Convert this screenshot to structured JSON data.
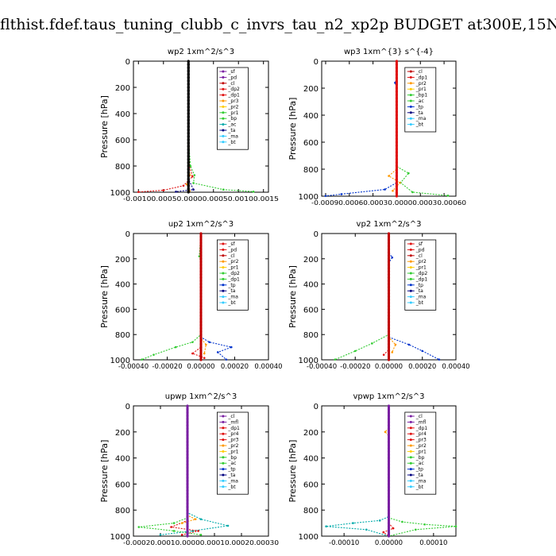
{
  "page_title": "flthist.fdef.taus_tuning_clubb_c_invrs_tau_n2_xp2p  BUDGET at300E,15N",
  "colors": {
    "red": "#e01010",
    "darkred": "#c00000",
    "purple": "#7a1fa2",
    "orange": "#ff9900",
    "yellow": "#ffcc00",
    "green": "#33cc33",
    "blue": "#0033cc",
    "cyan": "#33ccff",
    "teal": "#00aaaa",
    "navy": "#000080",
    "black": "#000000"
  },
  "chart_data": [
    {
      "type": "line",
      "title": "wp2   1xm^2/s^3",
      "ylabel": "Pressure [hPa]",
      "ylim": [
        1000,
        0
      ],
      "y_ticks": [
        "0",
        "200",
        "400",
        "600",
        "800",
        "1000"
      ],
      "xlim": [
        -0.0011,
        0.0016
      ],
      "x_ticks": [
        -0.001,
        -0.0005,
        0.0,
        0.0005,
        0.001,
        0.0015
      ],
      "x_tick_labels": [
        "-0.00100.00050.00000.00050.00100.0015"
      ],
      "legend": [
        "_sf",
        "_pd",
        "_cl",
        "_dp2",
        "_dp1",
        "_pr3",
        "_pr2",
        "_pr1",
        "_bp",
        "_ac",
        "_ta",
        "_ma",
        "_bt"
      ],
      "legend_colors": [
        "purple",
        "purple",
        "darkred",
        "red",
        "red",
        "orange",
        "yellow",
        "green",
        "green",
        "teal",
        "navy",
        "cyan",
        "cyan"
      ],
      "series": [
        {
          "color": "red",
          "pts": [
            [
              0,
              0
            ],
            [
              0,
              400
            ],
            [
              2e-05,
              800
            ],
            [
              8e-05,
              880
            ],
            [
              -0.0001,
              950
            ],
            [
              -0.0005,
              985
            ],
            [
              -0.001,
              998
            ]
          ]
        },
        {
          "color": "green",
          "pts": [
            [
              0,
              0
            ],
            [
              0,
              600
            ],
            [
              4e-05,
              800
            ],
            [
              0.00012,
              870
            ],
            [
              0.0001,
              930
            ],
            [
              0.0007,
              980
            ],
            [
              0.0013,
              996
            ]
          ]
        },
        {
          "color": "orange",
          "pts": [
            [
              0,
              0
            ],
            [
              0,
              800
            ],
            [
              3e-05,
              870
            ],
            [
              -3e-05,
              940
            ],
            [
              2e-05,
              990
            ]
          ]
        },
        {
          "color": "navy",
          "pts": [
            [
              0,
              0
            ],
            [
              0,
              900
            ],
            [
              0.0001,
              980
            ],
            [
              -0.00025,
              996
            ]
          ]
        },
        {
          "color": "black",
          "pts": [
            [
              0,
              0
            ],
            [
              0,
              1000
            ]
          ]
        }
      ]
    },
    {
      "type": "line",
      "title": "wp3   1xm^{3} s^{-4}",
      "ylabel": "Pressure [hPa]",
      "ylim": [
        1000,
        0
      ],
      "y_ticks": [
        "0",
        "200",
        "400",
        "600",
        "800",
        "1000"
      ],
      "xlim": [
        -0.00095,
        0.00075
      ],
      "x_ticks": [
        -0.0009,
        -0.0006,
        -0.0003,
        0.0,
        0.0003,
        0.0006
      ],
      "x_tick_labels": [
        "-0.00090.00060.00030.00000.00030.00060"
      ],
      "legend": [
        "_cl",
        "_dp1",
        "_pr2",
        "_pr1",
        "_bp1",
        "_ac",
        "_tp",
        "_ta",
        "_ma",
        "_bt"
      ],
      "legend_colors": [
        "darkred",
        "red",
        "orange",
        "yellow",
        "green",
        "green",
        "blue",
        "navy",
        "cyan",
        "cyan"
      ],
      "series": [
        {
          "color": "blue",
          "pts": [
            [
              0,
              0
            ],
            [
              0,
              130
            ],
            [
              -2e-05,
              160
            ],
            [
              0,
              200
            ],
            [
              0,
              900
            ],
            [
              -0.00015,
              950
            ],
            [
              -0.0007,
              985
            ],
            [
              -0.0009,
              998
            ]
          ]
        },
        {
          "color": "green",
          "pts": [
            [
              0,
              0
            ],
            [
              0,
              780
            ],
            [
              0.00015,
              830
            ],
            [
              5e-05,
              900
            ],
            [
              0.0002,
              970
            ],
            [
              0.00065,
              996
            ]
          ]
        },
        {
          "color": "orange",
          "pts": [
            [
              0,
              0
            ],
            [
              0,
              800
            ],
            [
              -0.0001,
              850
            ],
            [
              4e-05,
              900
            ],
            [
              -5e-05,
              960
            ]
          ]
        },
        {
          "color": "red",
          "pts": [
            [
              0,
              0
            ],
            [
              0,
              1000
            ]
          ]
        }
      ]
    },
    {
      "type": "line",
      "title": "up2   1xm^2/s^3",
      "ylabel": "Pressure [hPa]",
      "ylim": [
        1000,
        0
      ],
      "y_ticks": [
        "0",
        "200",
        "400",
        "600",
        "800",
        "1000"
      ],
      "xlim": [
        -0.0004,
        0.0004
      ],
      "x_ticks": [
        -0.0004,
        -0.0002,
        0.0,
        0.0002,
        0.0004
      ],
      "x_tick_labels": [
        "-0.00040",
        "-0.00020",
        "0.00000",
        "0.00020",
        "0.00040"
      ],
      "legend": [
        "_sf",
        "_pd",
        "_cl",
        "_pr2",
        "_pr1",
        "_dp2",
        "_dp1",
        "_tp",
        "_ta",
        "_ma",
        "_bt"
      ],
      "legend_colors": [
        "red",
        "red",
        "darkred",
        "orange",
        "yellow",
        "green",
        "green",
        "blue",
        "navy",
        "cyan",
        "cyan"
      ],
      "series": [
        {
          "color": "green",
          "pts": [
            [
              0,
              0
            ],
            [
              -1e-05,
              180
            ],
            [
              0,
              230
            ],
            [
              0,
              800
            ],
            [
              -5e-05,
              860
            ],
            [
              -0.00015,
              900
            ],
            [
              -0.00028,
              960
            ],
            [
              -0.00035,
              998
            ]
          ]
        },
        {
          "color": "blue",
          "pts": [
            [
              0,
              0
            ],
            [
              0,
              820
            ],
            [
              5e-05,
              860
            ],
            [
              0.00018,
              900
            ],
            [
              0.0001,
              940
            ],
            [
              0.00015,
              998
            ]
          ]
        },
        {
          "color": "orange",
          "pts": [
            [
              0,
              0
            ],
            [
              0,
              830
            ],
            [
              3e-05,
              880
            ],
            [
              2e-05,
              950
            ]
          ]
        },
        {
          "color": "red",
          "pts": [
            [
              0,
              0
            ],
            [
              0,
              900
            ],
            [
              -5e-05,
              950
            ],
            [
              2e-05,
              985
            ]
          ]
        },
        {
          "color": "darkred",
          "pts": [
            [
              0,
              0
            ],
            [
              0,
              1000
            ]
          ]
        }
      ]
    },
    {
      "type": "line",
      "title": "vp2   1xm^2/s^3",
      "ylabel": "Pressure [hPa]",
      "ylim": [
        1000,
        0
      ],
      "y_ticks": [
        "0",
        "200",
        "400",
        "600",
        "800",
        "1000"
      ],
      "xlim": [
        -0.0004,
        0.0004
      ],
      "x_ticks": [
        -0.0004,
        -0.0002,
        0.0,
        0.0002,
        0.0004
      ],
      "x_tick_labels": [
        "-0.00040",
        "-0.00020",
        "0.00000",
        "0.00020",
        "0.00040"
      ],
      "legend": [
        "_sf",
        "_pd",
        "_cl",
        "_pr2",
        "_pr1",
        "_dp2",
        "_dp1",
        "_tp",
        "_ta",
        "_ma",
        "_bt"
      ],
      "legend_colors": [
        "red",
        "red",
        "darkred",
        "orange",
        "yellow",
        "green",
        "green",
        "blue",
        "navy",
        "cyan",
        "cyan"
      ],
      "series": [
        {
          "color": "blue",
          "pts": [
            [
              0,
              0
            ],
            [
              0,
              150
            ],
            [
              2e-05,
              190
            ],
            [
              0,
              230
            ],
            [
              0,
              820
            ],
            [
              0.00012,
              880
            ],
            [
              0.0002,
              930
            ],
            [
              0.0003,
              998
            ]
          ]
        },
        {
          "color": "green",
          "pts": [
            [
              0,
              0
            ],
            [
              0,
              800
            ],
            [
              -0.0001,
              870
            ],
            [
              -0.0002,
              930
            ],
            [
              -0.00032,
              998
            ]
          ]
        },
        {
          "color": "orange",
          "pts": [
            [
              0,
              0
            ],
            [
              0,
              820
            ],
            [
              4e-05,
              880
            ],
            [
              2e-05,
              940
            ]
          ]
        },
        {
          "color": "red",
          "pts": [
            [
              0,
              0
            ],
            [
              0,
              920
            ],
            [
              -3e-05,
              960
            ]
          ]
        },
        {
          "color": "darkred",
          "pts": [
            [
              0,
              0
            ],
            [
              0,
              1000
            ]
          ]
        }
      ]
    },
    {
      "type": "line",
      "title": "upwp   1xm^2/s^3",
      "ylabel": "Pressure [hPa]",
      "ylim": [
        1000,
        0
      ],
      "y_ticks": [
        "0",
        "200",
        "400",
        "600",
        "800",
        "1000"
      ],
      "xlim": [
        -0.0002,
        0.0003
      ],
      "x_ticks": [
        -0.0002,
        -0.0001,
        0.0,
        0.0001,
        0.0002,
        0.0003
      ],
      "x_tick_labels": [
        "-0.00020.00010.00000.00010.00020.00030"
      ],
      "legend": [
        "_cl",
        "_mfl",
        "_dp1",
        "_pr4",
        "_pr3",
        "_pr2",
        "_pr1",
        "_bp",
        "_ac",
        "_tp",
        "_ta",
        "_ma",
        "_bt"
      ],
      "legend_colors": [
        "purple",
        "purple",
        "red",
        "red",
        "red",
        "orange",
        "yellow",
        "green",
        "green",
        "blue",
        "navy",
        "cyan",
        "cyan"
      ],
      "series": [
        {
          "color": "teal",
          "pts": [
            [
              0,
              0
            ],
            [
              0,
              820
            ],
            [
              5e-05,
              870
            ],
            [
              0.00015,
              920
            ],
            [
              2e-05,
              960
            ],
            [
              -0.0001,
              990
            ]
          ]
        },
        {
          "color": "green",
          "pts": [
            [
              0,
              0
            ],
            [
              0,
              860
            ],
            [
              -5e-05,
              900
            ],
            [
              -0.00018,
              930
            ],
            [
              -5e-05,
              960
            ],
            [
              5e-05,
              990
            ]
          ]
        },
        {
          "color": "red",
          "pts": [
            [
              0,
              0
            ],
            [
              0,
              880
            ],
            [
              -6e-05,
              930
            ],
            [
              4e-05,
              960
            ],
            [
              -2e-05,
              990
            ]
          ]
        },
        {
          "color": "orange",
          "pts": [
            [
              0,
              0
            ],
            [
              0,
              840
            ],
            [
              3e-05,
              870
            ],
            [
              -2e-05,
              900
            ]
          ]
        },
        {
          "color": "purple",
          "pts": [
            [
              0,
              0
            ],
            [
              0,
              1000
            ]
          ]
        }
      ]
    },
    {
      "type": "line",
      "title": "vpwp   1xm^2/s^3",
      "ylabel": "Pressure [hPa]",
      "ylim": [
        1000,
        0
      ],
      "y_ticks": [
        "0",
        "200",
        "400",
        "600",
        "800",
        "1000"
      ],
      "xlim": [
        -0.00015,
        0.00015
      ],
      "x_ticks": [
        -0.0001,
        0.0,
        0.0001
      ],
      "x_tick_labels": [
        "-0.00010",
        "0.00000",
        "0.00010"
      ],
      "legend": [
        "_cl",
        "_mfl",
        "_dp1",
        "_pr4",
        "_pr3",
        "_pr2",
        "_pr1",
        "_bp",
        "_ac",
        "_tp",
        "_ta",
        "_ma",
        "_bt"
      ],
      "legend_colors": [
        "purple",
        "purple",
        "red",
        "red",
        "red",
        "orange",
        "yellow",
        "green",
        "green",
        "blue",
        "navy",
        "cyan",
        "cyan"
      ],
      "series": [
        {
          "color": "orange",
          "pts": [
            [
              0,
              0
            ],
            [
              0,
              170
            ],
            [
              -8e-06,
              200
            ],
            [
              0,
              230
            ],
            [
              0,
              1000
            ]
          ]
        },
        {
          "color": "teal",
          "pts": [
            [
              0,
              0
            ],
            [
              0,
              850
            ],
            [
              -2e-05,
              880
            ],
            [
              -8e-05,
              900
            ],
            [
              -0.00014,
              925
            ],
            [
              -5e-05,
              950
            ],
            [
              0,
              1000
            ]
          ]
        },
        {
          "color": "green",
          "pts": [
            [
              0,
              0
            ],
            [
              0,
              860
            ],
            [
              3e-05,
              890
            ],
            [
              8e-05,
              910
            ],
            [
              0.00015,
              925
            ],
            [
              6e-05,
              950
            ],
            [
              0,
              1000
            ]
          ]
        },
        {
          "color": "red",
          "pts": [
            [
              0,
              0
            ],
            [
              0,
              900
            ],
            [
              1e-05,
              940
            ],
            [
              -1.2e-05,
              970
            ],
            [
              0,
              1000
            ]
          ]
        },
        {
          "color": "purple",
          "pts": [
            [
              0,
              0
            ],
            [
              0,
              1000
            ]
          ]
        }
      ]
    }
  ]
}
